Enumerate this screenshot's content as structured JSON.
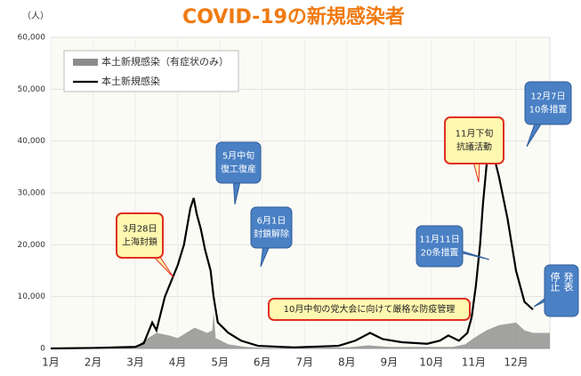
{
  "chart_data": {
    "type": "line",
    "title": "COVID-19の新規感染者",
    "y_label": "（人）",
    "xlim": [
      1,
      12.8
    ],
    "xticks": [
      {
        "value": 1,
        "label": "1月"
      },
      {
        "value": 2,
        "label": "2月"
      },
      {
        "value": 3,
        "label": "3月"
      },
      {
        "value": 4,
        "label": "4月"
      },
      {
        "value": 5,
        "label": "5月"
      },
      {
        "value": 6,
        "label": "6月"
      },
      {
        "value": 7,
        "label": "7月"
      },
      {
        "value": 8,
        "label": "8月"
      },
      {
        "value": 9,
        "label": "9月"
      },
      {
        "value": 10,
        "label": "10月"
      },
      {
        "value": 11,
        "label": "11月"
      },
      {
        "value": 12,
        "label": "12月"
      }
    ],
    "ylim": [
      0,
      60000
    ],
    "yticks": [
      0,
      {
        "value": 10000,
        "label": "10,000"
      },
      {
        "value": 20000,
        "label": "20,000"
      },
      {
        "value": 30000,
        "label": "30,000"
      },
      {
        "value": 40000,
        "label": "40,000"
      },
      {
        "value": 50000,
        "label": "50,000"
      },
      {
        "value": 60000,
        "label": "60,000"
      }
    ],
    "grid": true,
    "legend": "upper left",
    "series": [
      {
        "name": "本土新規感染（有症状のみ）",
        "kind": "area",
        "color": "#8c8c8c",
        "x": [
          1,
          3,
          3.2,
          3.5,
          3.8,
          4.0,
          4.4,
          4.7,
          4.82,
          4.85,
          4.9,
          5.2,
          5.6,
          6.0,
          8.0,
          8.5,
          9.0,
          10.5,
          10.8,
          11.0,
          11.3,
          11.6,
          12.0,
          12.2,
          12.4,
          12.8
        ],
        "values": [
          0,
          200,
          1500,
          3000,
          2500,
          2000,
          4000,
          3000,
          3500,
          7000,
          2000,
          800,
          300,
          100,
          200,
          600,
          300,
          300,
          800,
          2000,
          3500,
          4500,
          5000,
          3500,
          3000,
          3000
        ]
      },
      {
        "name": "本土新規感染",
        "kind": "line",
        "color": "#000000",
        "x": [
          1,
          2,
          3,
          3.2,
          3.4,
          3.5,
          3.7,
          4.0,
          4.15,
          4.3,
          4.38,
          4.45,
          4.55,
          4.65,
          4.78,
          4.85,
          4.95,
          5.2,
          5.5,
          5.9,
          6.75,
          7.8,
          8.2,
          8.55,
          8.85,
          9.3,
          9.9,
          10.2,
          10.4,
          10.65,
          10.85,
          10.95,
          11.05,
          11.15,
          11.22,
          11.3,
          11.36,
          11.42,
          11.6,
          11.8,
          12.0,
          12.2,
          12.4
        ],
        "values": [
          0,
          100,
          300,
          1000,
          5000,
          3500,
          10000,
          16000,
          20000,
          27000,
          29000,
          26000,
          23000,
          19000,
          15000,
          10000,
          5000,
          3000,
          1500,
          500,
          200,
          500,
          1500,
          3000,
          1800,
          1200,
          900,
          1500,
          2500,
          1500,
          3000,
          6000,
          12000,
          20000,
          28000,
          35000,
          40000,
          39000,
          33000,
          25000,
          15000,
          9000,
          7500
        ]
      }
    ],
    "annotations": [
      {
        "lines": [
          "3月28日",
          "上海封鎖"
        ],
        "color": "#fff8b0"
      },
      {
        "lines": [
          "5月中旬",
          "復工復産"
        ],
        "color": "#4a80c4"
      },
      {
        "lines": [
          "6月1日",
          "封鎖解除"
        ],
        "color": "#4a80c4"
      },
      {
        "lines": [
          "10月中旬の党大会に向けて厳格な防疫管理"
        ],
        "color": "#fff8b0"
      },
      {
        "lines": [
          "11月下旬",
          "抗議活動"
        ],
        "color": "#fff8b0"
      },
      {
        "lines": [
          "11月11日",
          "20条措置"
        ],
        "color": "#4a80c4"
      },
      {
        "lines": [
          "12月7日",
          "10条措置"
        ],
        "color": "#4a80c4"
      },
      {
        "lines": [
          "発表",
          "停止"
        ],
        "color": "#4a80c4"
      }
    ]
  }
}
